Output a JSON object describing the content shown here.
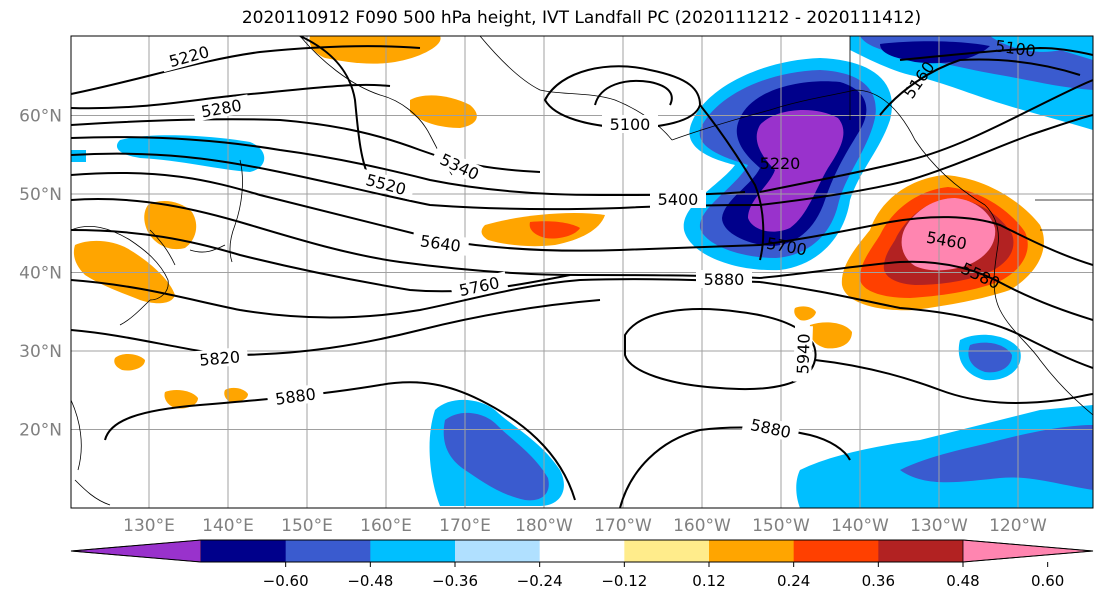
{
  "title": "2020110912 F090 500 hPa height, IVT Landfall PC (2020111212 - 2020111412)",
  "lat_labels": [
    "60°N",
    "50°N",
    "40°N",
    "30°N",
    "20°N"
  ],
  "lat_values": [
    60,
    50,
    40,
    30,
    20
  ],
  "lon_labels": [
    "130°E",
    "140°E",
    "150°E",
    "160°E",
    "170°E",
    "180°W",
    "170°W",
    "160°W",
    "150°W",
    "140°W",
    "130°W",
    "120°W"
  ],
  "contour_labels": [
    "5220",
    "5280",
    "5340",
    "5520",
    "5640",
    "5760",
    "5820",
    "5880",
    "5100",
    "5400",
    "5220",
    "5700",
    "5880",
    "5940",
    "5880",
    "5100",
    "5160",
    "5460",
    "5580"
  ],
  "colorbar": {
    "ticks": [
      "−0.60",
      "−0.48",
      "−0.36",
      "−0.24",
      "−0.12",
      "0.12",
      "0.24",
      "0.36",
      "0.48",
      "0.60"
    ],
    "colors": [
      "#9932cc",
      "#00008b",
      "#3a5bcf",
      "#00bfff",
      "#b0e0ff",
      "#ffffff",
      "#ffec8b",
      "#ffa500",
      "#ff4000",
      "#b22222",
      "#ff85b0"
    ]
  },
  "legend_colors": {
    "border": "#000000",
    "grid": "#a0a0a0",
    "contour": "#000000",
    "land": "#ffffff"
  }
}
